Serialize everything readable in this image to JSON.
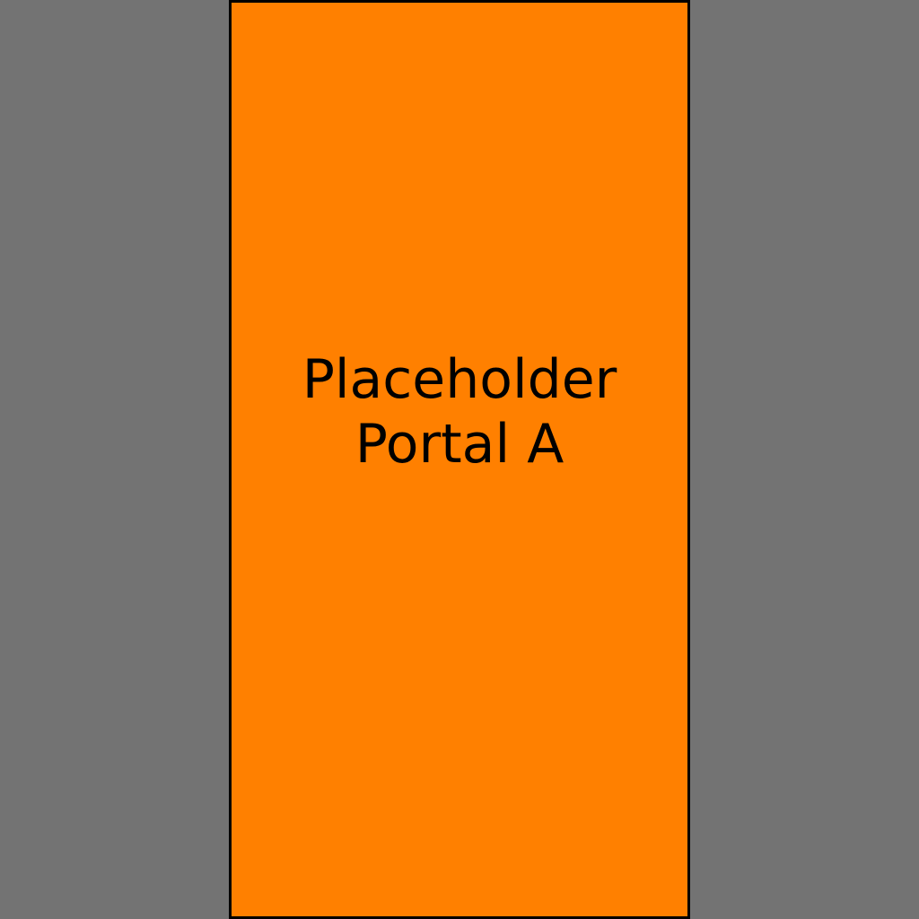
{
  "portal": {
    "line1": "Placeholder",
    "line2": "Portal A"
  },
  "colors": {
    "background": "#737373",
    "portal_fill": "#ff8000",
    "border": "#000000",
    "text": "#000000"
  }
}
